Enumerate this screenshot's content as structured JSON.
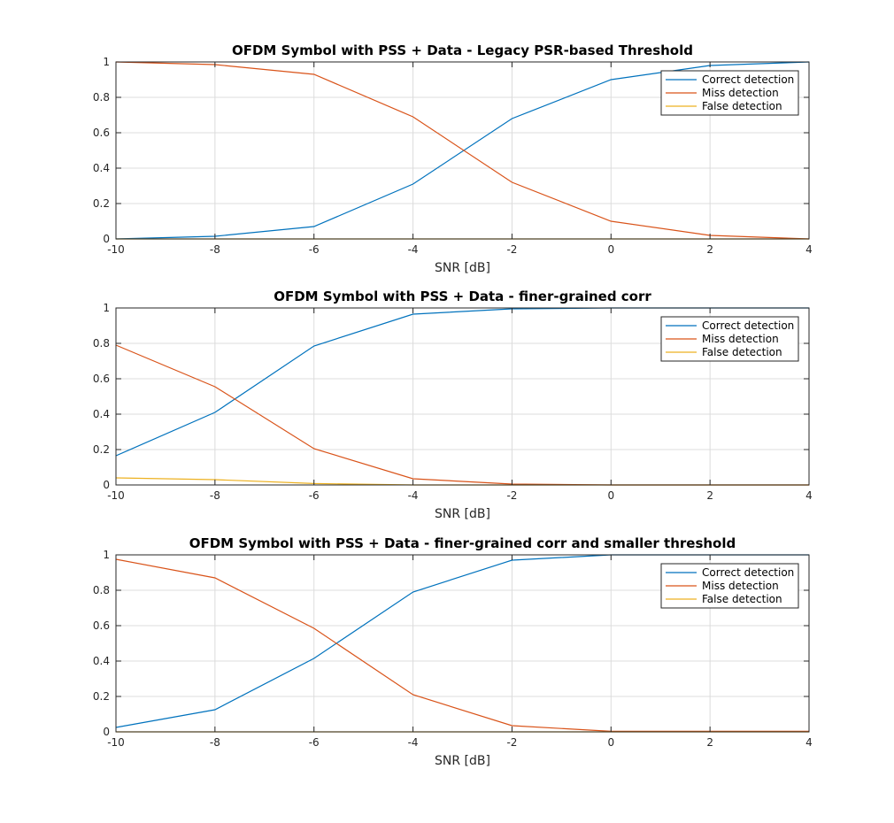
{
  "chart_data": [
    {
      "type": "line",
      "title": "OFDM Symbol with PSS + Data - Legacy PSR-based Threshold",
      "xlabel": "SNR [dB]",
      "ylabel": "",
      "x": [
        -10,
        -8,
        -6,
        -4,
        -2,
        0,
        2,
        4
      ],
      "xlim": [
        -10,
        4
      ],
      "ylim": [
        0,
        1
      ],
      "xticks": [
        "-10",
        "-8",
        "-6",
        "-4",
        "-2",
        "0",
        "2",
        "4"
      ],
      "yticks": [
        "0",
        "0.2",
        "0.4",
        "0.6",
        "0.8",
        "1"
      ],
      "grid": true,
      "legend_position": "top-right",
      "series": [
        {
          "name": "Correct detection",
          "color": "#0072BD",
          "values": [
            0.0,
            0.015,
            0.07,
            0.31,
            0.68,
            0.9,
            0.98,
            1.0
          ]
        },
        {
          "name": "Miss detection",
          "color": "#D95319",
          "values": [
            1.0,
            0.985,
            0.93,
            0.69,
            0.32,
            0.1,
            0.02,
            0.0
          ]
        },
        {
          "name": "False detection",
          "color": "#EDB120",
          "values": [
            0.0,
            0.0,
            0.0,
            0.0,
            0.0,
            0.0,
            0.0,
            0.0
          ]
        }
      ]
    },
    {
      "type": "line",
      "title": "OFDM Symbol with PSS + Data - finer-grained corr",
      "xlabel": "SNR [dB]",
      "ylabel": "",
      "x": [
        -10,
        -8,
        -6,
        -4,
        -2,
        0,
        2,
        4
      ],
      "xlim": [
        -10,
        4
      ],
      "ylim": [
        0,
        1
      ],
      "xticks": [
        "-10",
        "-8",
        "-6",
        "-4",
        "-2",
        "0",
        "2",
        "4"
      ],
      "yticks": [
        "0",
        "0.2",
        "0.4",
        "0.6",
        "0.8",
        "1"
      ],
      "grid": true,
      "legend_position": "top-right",
      "series": [
        {
          "name": "Correct detection",
          "color": "#0072BD",
          "values": [
            0.165,
            0.41,
            0.785,
            0.965,
            0.995,
            1.0,
            1.0,
            1.0
          ]
        },
        {
          "name": "Miss detection",
          "color": "#D95319",
          "values": [
            0.79,
            0.555,
            0.205,
            0.035,
            0.005,
            0.0,
            0.0,
            0.0
          ]
        },
        {
          "name": "False detection",
          "color": "#EDB120",
          "values": [
            0.04,
            0.03,
            0.008,
            0.0,
            0.0,
            0.0,
            0.0,
            0.0
          ]
        }
      ]
    },
    {
      "type": "line",
      "title": "OFDM Symbol with PSS + Data - finer-grained corr and smaller threshold",
      "xlabel": "SNR [dB]",
      "ylabel": "",
      "x": [
        -10,
        -8,
        -6,
        -4,
        -2,
        0,
        2,
        4
      ],
      "xlim": [
        -10,
        4
      ],
      "ylim": [
        0,
        1
      ],
      "xticks": [
        "-10",
        "-8",
        "-6",
        "-4",
        "-2",
        "0",
        "2",
        "4"
      ],
      "yticks": [
        "0",
        "0.2",
        "0.4",
        "0.6",
        "0.8",
        "1"
      ],
      "grid": true,
      "legend_position": "top-right",
      "series": [
        {
          "name": "Correct detection",
          "color": "#0072BD",
          "values": [
            0.025,
            0.125,
            0.415,
            0.79,
            0.97,
            1.0,
            1.0,
            1.0
          ]
        },
        {
          "name": "Miss detection",
          "color": "#D95319",
          "values": [
            0.975,
            0.87,
            0.585,
            0.21,
            0.035,
            0.003,
            0.003,
            0.003
          ]
        },
        {
          "name": "False detection",
          "color": "#EDB120",
          "values": [
            0.0,
            0.0,
            0.0,
            0.0,
            0.0,
            0.0,
            0.0,
            0.0
          ]
        }
      ]
    }
  ]
}
